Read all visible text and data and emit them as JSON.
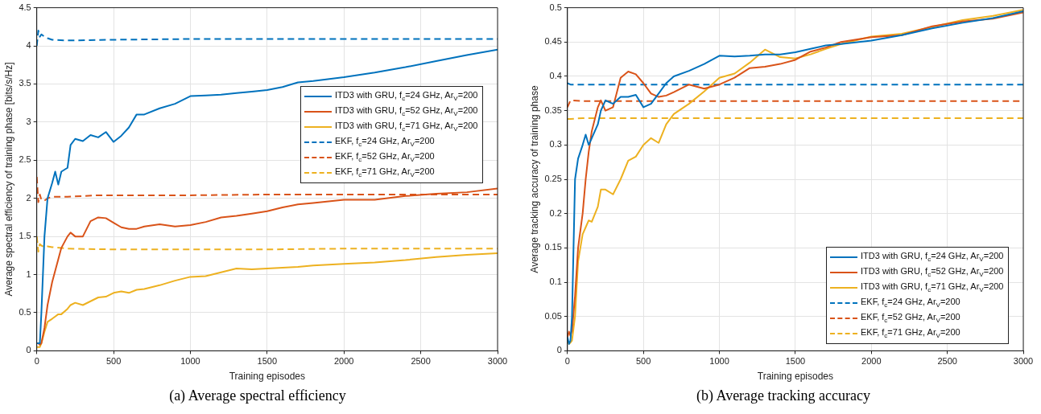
{
  "chart_data": [
    {
      "type": "line",
      "title": "(a)  Average spectral efficiency",
      "xlabel": "Training episodes",
      "ylabel": "Average spectral efficiency of training phase [bits/s/Hz]",
      "x": [
        0,
        10,
        20,
        30,
        50,
        70,
        100,
        120,
        140,
        160,
        200,
        220,
        250,
        300,
        350,
        400,
        450,
        500,
        550,
        600,
        650,
        700,
        800,
        900,
        1000,
        1100,
        1200,
        1300,
        1400,
        1500,
        1600,
        1700,
        1800,
        2000,
        2200,
        2400,
        2600,
        2800,
        3000
      ],
      "xlim": [
        0,
        3000
      ],
      "xticks": [
        0,
        500,
        1000,
        1500,
        2000,
        2500,
        3000
      ],
      "ylim": [
        0,
        4.5
      ],
      "yticks": [
        0,
        0.5,
        1,
        1.5,
        2,
        2.5,
        3,
        3.5,
        4,
        4.5
      ],
      "grid": true,
      "legend": "right",
      "series": [
        {
          "name": "ITD3 with GRU, f$_{c}$=24 GHz, Ar$_{V}$=200",
          "color": "#0072bd",
          "line_style": "solid",
          "values": [
            0.1,
            0.1,
            0.1,
            0.5,
            1.5,
            2.0,
            2.2,
            2.35,
            2.18,
            2.35,
            2.4,
            2.7,
            2.78,
            2.75,
            2.83,
            2.8,
            2.87,
            2.74,
            2.82,
            2.93,
            3.1,
            3.1,
            3.18,
            3.24,
            3.34,
            3.35,
            3.36,
            3.38,
            3.4,
            3.42,
            3.46,
            3.52,
            3.54,
            3.59,
            3.65,
            3.72,
            3.8,
            3.88,
            3.95
          ]
        },
        {
          "name": "ITD3 with GRU, f$_{c}$=52 GHz, Ar$_{V}$=200",
          "color": "#d95319",
          "line_style": "solid",
          "values": [
            0.1,
            0.1,
            0.08,
            0.1,
            0.3,
            0.6,
            0.9,
            1.05,
            1.2,
            1.35,
            1.5,
            1.55,
            1.5,
            1.5,
            1.7,
            1.75,
            1.74,
            1.68,
            1.62,
            1.6,
            1.6,
            1.63,
            1.66,
            1.63,
            1.65,
            1.69,
            1.75,
            1.77,
            1.8,
            1.83,
            1.88,
            1.92,
            1.94,
            1.98,
            1.98,
            2.03,
            2.06,
            2.08,
            2.13
          ]
        },
        {
          "name": "ITD3 with GRU, f$_{c}$=71 GHz, Ar$_{V}$=200",
          "color": "#edb120",
          "line_style": "solid",
          "values": [
            0.05,
            0.05,
            0.05,
            0.1,
            0.25,
            0.38,
            0.42,
            0.45,
            0.48,
            0.48,
            0.55,
            0.6,
            0.63,
            0.6,
            0.65,
            0.7,
            0.71,
            0.76,
            0.78,
            0.76,
            0.8,
            0.81,
            0.86,
            0.92,
            0.97,
            0.98,
            1.03,
            1.08,
            1.07,
            1.08,
            1.09,
            1.1,
            1.12,
            1.14,
            1.16,
            1.19,
            1.23,
            1.26,
            1.28
          ]
        },
        {
          "name": "EKF, f$_{c}$=24 GHz, Ar$_{V}$=200",
          "color": "#0072bd",
          "line_style": "dashed",
          "x": [
            0,
            10,
            20,
            30,
            50,
            70,
            100,
            200,
            500,
            1000,
            1500,
            2000,
            2500,
            3000
          ],
          "values": [
            4.0,
            4.2,
            4.12,
            4.15,
            4.12,
            4.1,
            4.08,
            4.07,
            4.08,
            4.09,
            4.09,
            4.09,
            4.09,
            4.09
          ]
        },
        {
          "name": "EKF, f$_{c}$=52 GHz, Ar$_{V}$=200",
          "color": "#d95319",
          "line_style": "dashed",
          "x": [
            0,
            10,
            20,
            30,
            50,
            70,
            100,
            200,
            400,
            1000,
            1500,
            2000,
            2500,
            3000
          ],
          "values": [
            2.28,
            1.95,
            2.05,
            1.98,
            1.97,
            2.0,
            2.02,
            2.02,
            2.04,
            2.04,
            2.05,
            2.05,
            2.05,
            2.05
          ]
        },
        {
          "name": "EKF, f$_{c}$=71 GHz, Ar$_{V}$=200",
          "color": "#edb120",
          "line_style": "dashed",
          "x": [
            0,
            10,
            20,
            30,
            50,
            70,
            100,
            200,
            500,
            1000,
            1500,
            2000,
            2500,
            3000
          ],
          "values": [
            1.5,
            1.3,
            1.4,
            1.38,
            1.36,
            1.37,
            1.36,
            1.34,
            1.33,
            1.33,
            1.33,
            1.34,
            1.34,
            1.34
          ]
        }
      ]
    },
    {
      "type": "line",
      "title": "(b)  Average tracking accuracy",
      "xlabel": "Training episodes",
      "ylabel": "Average tracking accuracy of training phase",
      "x": [
        0,
        10,
        20,
        30,
        50,
        70,
        100,
        120,
        140,
        160,
        200,
        220,
        250,
        300,
        350,
        400,
        450,
        500,
        550,
        600,
        650,
        700,
        800,
        900,
        1000,
        1100,
        1200,
        1300,
        1400,
        1500,
        1600,
        1700,
        1800,
        2000,
        2200,
        2400,
        2600,
        2800,
        3000
      ],
      "xlim": [
        0,
        3000
      ],
      "xticks": [
        0,
        500,
        1000,
        1500,
        2000,
        2500,
        3000
      ],
      "ylim": [
        0,
        0.5
      ],
      "yticks": [
        0,
        0.05,
        0.1,
        0.15,
        0.2,
        0.25,
        0.3,
        0.35,
        0.4,
        0.45,
        0.5
      ],
      "grid": true,
      "legend": "bottom right",
      "series": [
        {
          "name": "ITD3 with GRU, f$_{c}$=24 GHz, Ar$_{V}$=200",
          "color": "#0072bd",
          "line_style": "solid",
          "values": [
            0.02,
            0.01,
            0.015,
            0.05,
            0.25,
            0.28,
            0.3,
            0.315,
            0.3,
            0.31,
            0.33,
            0.35,
            0.365,
            0.36,
            0.37,
            0.37,
            0.373,
            0.355,
            0.36,
            0.375,
            0.39,
            0.4,
            0.408,
            0.418,
            0.43,
            0.429,
            0.43,
            0.432,
            0.432,
            0.435,
            0.44,
            0.445,
            0.447,
            0.452,
            0.46,
            0.47,
            0.478,
            0.485,
            0.495
          ]
        },
        {
          "name": "ITD3 with GRU, f$_{c}$=52 GHz, Ar$_{V}$=200",
          "color": "#d95319",
          "line_style": "solid",
          "values": [
            0.02,
            0.028,
            0.022,
            0.03,
            0.08,
            0.15,
            0.2,
            0.25,
            0.29,
            0.32,
            0.355,
            0.365,
            0.35,
            0.355,
            0.398,
            0.407,
            0.403,
            0.39,
            0.375,
            0.37,
            0.372,
            0.377,
            0.388,
            0.382,
            0.388,
            0.398,
            0.412,
            0.414,
            0.418,
            0.424,
            0.436,
            0.442,
            0.45,
            0.457,
            0.46,
            0.473,
            0.48,
            0.484,
            0.493
          ]
        },
        {
          "name": "ITD3 with GRU, f$_{c}$=71 GHz, Ar$_{V}$=200",
          "color": "#edb120",
          "line_style": "solid",
          "values": [
            0.015,
            0.01,
            0.012,
            0.015,
            0.05,
            0.13,
            0.17,
            0.18,
            0.19,
            0.188,
            0.21,
            0.235,
            0.235,
            0.228,
            0.25,
            0.277,
            0.283,
            0.3,
            0.31,
            0.303,
            0.33,
            0.345,
            0.36,
            0.378,
            0.398,
            0.404,
            0.42,
            0.439,
            0.428,
            0.426,
            0.432,
            0.44,
            0.447,
            0.458,
            0.462,
            0.472,
            0.482,
            0.488,
            0.497
          ]
        },
        {
          "name": "EKF, f$_{c}$=24 GHz, Ar$_{V}$=200",
          "color": "#0072bd",
          "line_style": "dashed",
          "x": [
            0,
            20,
            100,
            500,
            1000,
            1500,
            2000,
            2500,
            3000
          ],
          "values": [
            0.39,
            0.388,
            0.388,
            0.388,
            0.388,
            0.388,
            0.388,
            0.388,
            0.388
          ]
        },
        {
          "name": "EKF, f$_{c}$=52 GHz, Ar$_{V}$=200",
          "color": "#d95319",
          "line_style": "dashed",
          "x": [
            0,
            20,
            100,
            500,
            1000,
            1500,
            2000,
            2500,
            3000
          ],
          "values": [
            0.355,
            0.365,
            0.364,
            0.364,
            0.364,
            0.364,
            0.364,
            0.364,
            0.364
          ]
        },
        {
          "name": "EKF, f$_{c}$=71 GHz, Ar$_{V}$=200",
          "color": "#edb120",
          "line_style": "dashed",
          "x": [
            0,
            20,
            100,
            500,
            1000,
            1500,
            2000,
            2500,
            3000
          ],
          "values": [
            0.338,
            0.338,
            0.339,
            0.339,
            0.339,
            0.339,
            0.339,
            0.339,
            0.339
          ]
        }
      ]
    }
  ]
}
